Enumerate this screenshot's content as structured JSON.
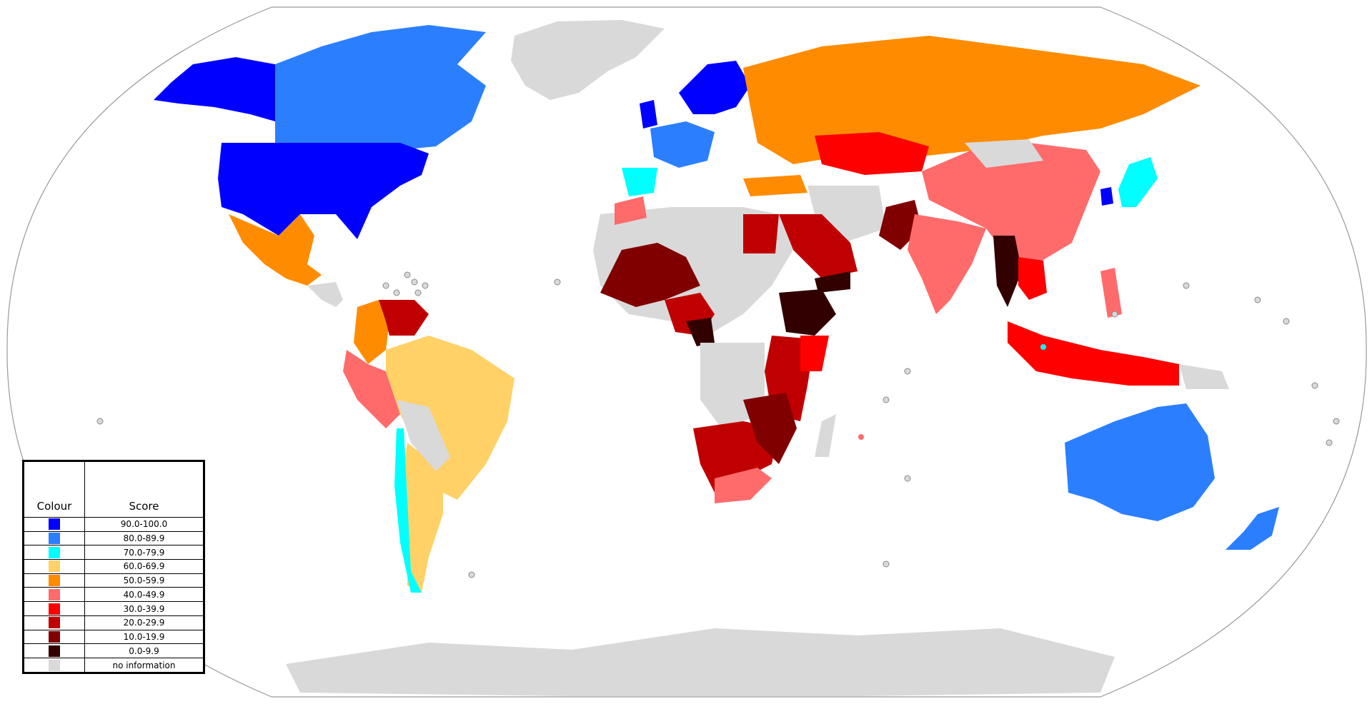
{
  "legend": {
    "header_colour": "Colour",
    "header_score": "Score",
    "entries": [
      {
        "range": "90.0-100.0",
        "color": "#0000ff"
      },
      {
        "range": "80.0-89.9",
        "color": "#2b7fff"
      },
      {
        "range": "70.0-79.9",
        "color": "#00ffff"
      },
      {
        "range": "60.0-69.9",
        "color": "#ffd166"
      },
      {
        "range": "50.0-59.9",
        "color": "#ff8c00"
      },
      {
        "range": "40.0-49.9",
        "color": "#ff6b6b"
      },
      {
        "range": "30.0-39.9",
        "color": "#ff0000"
      },
      {
        "range": "20.0-29.9",
        "color": "#c00000"
      },
      {
        "range": "10.0-19.9",
        "color": "#800000"
      },
      {
        "range": "0.0-9.9",
        "color": "#330000"
      },
      {
        "range": "no information",
        "color": "#d9d9d9"
      }
    ]
  },
  "map": {
    "projection": "Robinson world map",
    "ocean_color": "#ffffff",
    "frame_color": "#888888"
  }
}
